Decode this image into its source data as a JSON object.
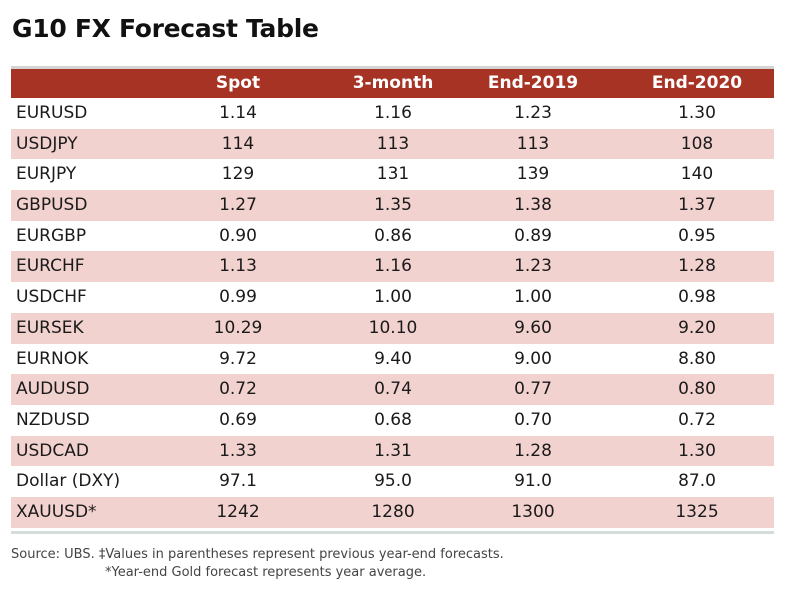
{
  "title": "G10 FX Forecast Table",
  "table": {
    "headers": [
      "",
      "Spot",
      "3-month",
      "End-2019",
      "End-2020"
    ],
    "rows": [
      [
        "EURUSD",
        "1.14",
        "1.16",
        "1.23",
        "1.30"
      ],
      [
        "USDJPY",
        "114",
        "113",
        "113",
        "108"
      ],
      [
        "EURJPY",
        "129",
        "131",
        "139",
        "140"
      ],
      [
        "GBPUSD",
        "1.27",
        "1.35",
        "1.38",
        "1.37"
      ],
      [
        "EURGBP",
        "0.90",
        "0.86",
        "0.89",
        "0.95"
      ],
      [
        "EURCHF",
        "1.13",
        "1.16",
        "1.23",
        "1.28"
      ],
      [
        "USDCHF",
        "0.99",
        "1.00",
        "1.00",
        "0.98"
      ],
      [
        "EURSEK",
        "10.29",
        "10.10",
        "9.60",
        "9.20"
      ],
      [
        "EURNOK",
        "9.72",
        "9.40",
        "9.00",
        "8.80"
      ],
      [
        "AUDUSD",
        "0.72",
        "0.74",
        "0.77",
        "0.80"
      ],
      [
        "NZDUSD",
        "0.69",
        "0.68",
        "0.70",
        "0.72"
      ],
      [
        "USDCAD",
        "1.33",
        "1.31",
        "1.28",
        "1.30"
      ],
      [
        "Dollar (DXY)",
        "97.1",
        "95.0",
        "91.0",
        "87.0"
      ],
      [
        "XAUUSD*",
        "1242",
        "1280",
        "1300",
        "1325"
      ]
    ]
  },
  "notes": {
    "line1": "Source: UBS. ‡Values in parentheses represent previous year-end forecasts.",
    "line2": "*Year-end Gold forecast represents year average."
  },
  "colors": {
    "header_bg": "#a63323",
    "alt_row_bg": "#f2d2cf"
  }
}
